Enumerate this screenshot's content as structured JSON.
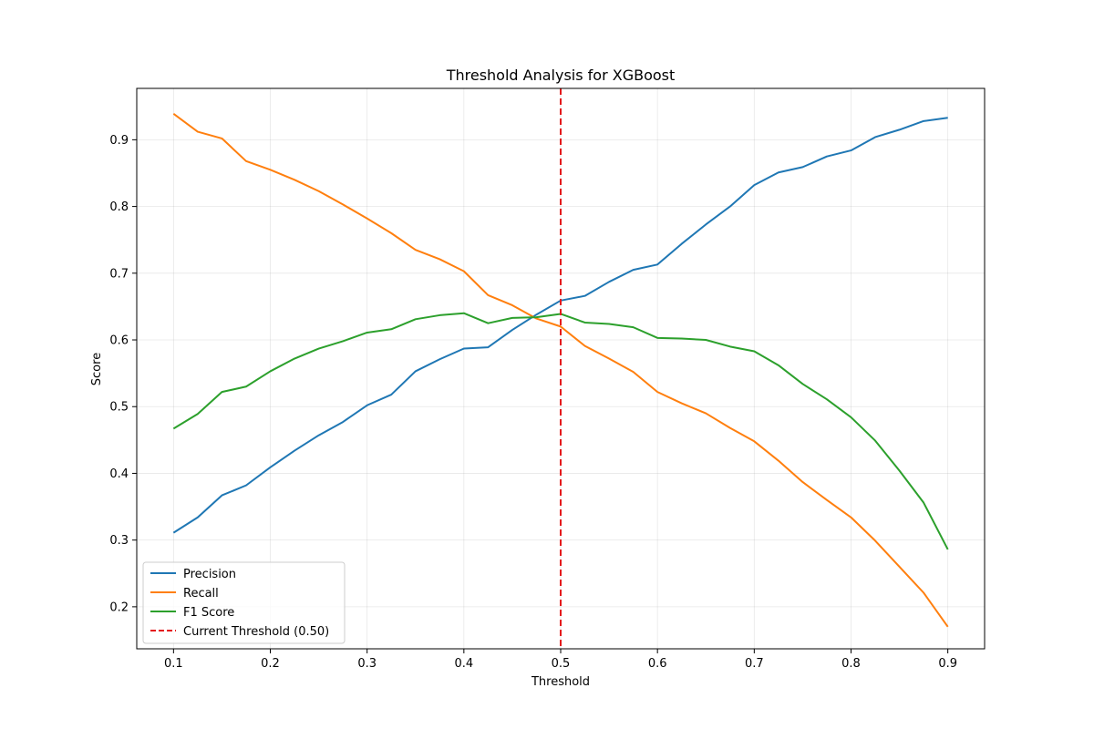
{
  "chart_data": {
    "type": "line",
    "title": "Threshold Analysis for XGBoost",
    "xlabel": "Threshold",
    "ylabel": "Score",
    "xlim": [
      0.062,
      0.938
    ],
    "ylim": [
      0.137,
      0.977
    ],
    "xticks": [
      "0.1",
      "0.2",
      "0.3",
      "0.4",
      "0.5",
      "0.6",
      "0.7",
      "0.8",
      "0.9"
    ],
    "yticks": [
      "0.2",
      "0.3",
      "0.4",
      "0.5",
      "0.6",
      "0.7",
      "0.8",
      "0.9"
    ],
    "grid": true,
    "legend_position": "lower-left",
    "x": [
      0.1,
      0.125,
      0.15,
      0.175,
      0.2,
      0.225,
      0.25,
      0.275,
      0.3,
      0.325,
      0.35,
      0.375,
      0.4,
      0.425,
      0.45,
      0.475,
      0.5,
      0.525,
      0.55,
      0.575,
      0.6,
      0.625,
      0.65,
      0.675,
      0.7,
      0.725,
      0.75,
      0.775,
      0.8,
      0.825,
      0.85,
      0.875,
      0.9
    ],
    "series": [
      {
        "name": "Precision",
        "color": "#1f77b4",
        "values": [
          0.311,
          0.334,
          0.367,
          0.382,
          0.409,
          0.434,
          0.457,
          0.477,
          0.502,
          0.518,
          0.553,
          0.571,
          0.587,
          0.589,
          0.615,
          0.638,
          0.659,
          0.666,
          0.687,
          0.705,
          0.713,
          0.744,
          0.773,
          0.8,
          0.832,
          0.851,
          0.859,
          0.875,
          0.884,
          0.904,
          0.915,
          0.928,
          0.933
        ]
      },
      {
        "name": "Recall",
        "color": "#ff7f0e",
        "values": [
          0.939,
          0.912,
          0.902,
          0.868,
          0.855,
          0.84,
          0.823,
          0.803,
          0.782,
          0.76,
          0.735,
          0.721,
          0.703,
          0.667,
          0.652,
          0.632,
          0.62,
          0.591,
          0.572,
          0.552,
          0.522,
          0.505,
          0.49,
          0.468,
          0.448,
          0.419,
          0.387,
          0.36,
          0.334,
          0.299,
          0.26,
          0.221,
          0.17
        ]
      },
      {
        "name": "F1 Score",
        "color": "#2ca02c",
        "values": [
          0.467,
          0.489,
          0.522,
          0.53,
          0.553,
          0.572,
          0.587,
          0.598,
          0.611,
          0.616,
          0.631,
          0.637,
          0.64,
          0.625,
          0.633,
          0.634,
          0.639,
          0.626,
          0.624,
          0.619,
          0.603,
          0.602,
          0.6,
          0.59,
          0.583,
          0.562,
          0.534,
          0.511,
          0.484,
          0.449,
          0.404,
          0.356,
          0.286
        ]
      }
    ],
    "threshold": {
      "name": "Current Threshold (0.50)",
      "value": 0.5,
      "color": "#e41a1c"
    }
  }
}
